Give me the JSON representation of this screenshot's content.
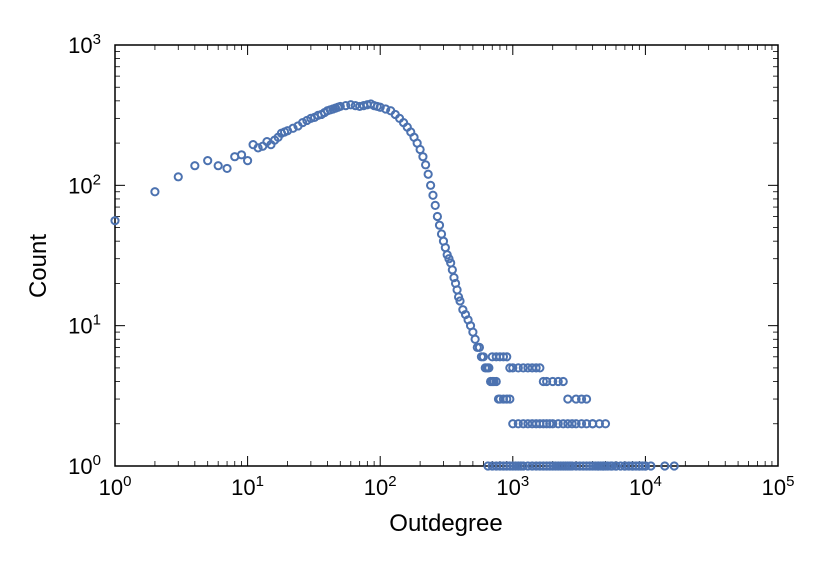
{
  "chart_data": {
    "type": "scatter",
    "title": "",
    "xlabel": "Outdegree",
    "ylabel": "Count",
    "x_scale": "log",
    "y_scale": "log",
    "xlim": [
      1,
      100000
    ],
    "ylim": [
      1,
      1000
    ],
    "grid": false,
    "legend": "none",
    "marker": "open-circle",
    "x_ticks": [
      {
        "base": "10",
        "exp": "0"
      },
      {
        "base": "10",
        "exp": "1"
      },
      {
        "base": "10",
        "exp": "2"
      },
      {
        "base": "10",
        "exp": "3"
      },
      {
        "base": "10",
        "exp": "4"
      },
      {
        "base": "10",
        "exp": "5"
      }
    ],
    "y_ticks": [
      {
        "base": "10",
        "exp": "0"
      },
      {
        "base": "10",
        "exp": "1"
      },
      {
        "base": "10",
        "exp": "2"
      },
      {
        "base": "10",
        "exp": "3"
      }
    ],
    "colors": {
      "marker": "#4c72b0",
      "axis": "#000000",
      "background": "#ffffff"
    },
    "series": [
      {
        "x": [
          1,
          2,
          3,
          4,
          5,
          6,
          7,
          8,
          9,
          10,
          11,
          12,
          13,
          14,
          15,
          16,
          17,
          18,
          19,
          20,
          22,
          24,
          26,
          28,
          30,
          32,
          34,
          36,
          38,
          40,
          42,
          44,
          46,
          48,
          50,
          55,
          60,
          65,
          70,
          75,
          80,
          85,
          90,
          95,
          100,
          110,
          120,
          130,
          140,
          150,
          160,
          170,
          180,
          190,
          200,
          210,
          220,
          230,
          240,
          250,
          260,
          270,
          280,
          290,
          300,
          310,
          320,
          330,
          340,
          350,
          360,
          370,
          380,
          390,
          400,
          420,
          440,
          460,
          480,
          500,
          520,
          540,
          560,
          580,
          600,
          620,
          640,
          660,
          680,
          700,
          720,
          750,
          780,
          800,
          850,
          900,
          950,
          1000,
          1100,
          1200,
          1300,
          1400,
          1500,
          1600,
          1700,
          1800,
          1900,
          2000,
          2200,
          2400,
          2600,
          2800,
          3000,
          3300,
          3600,
          4000,
          4400,
          4800,
          5200,
          5600,
          6000,
          7000,
          8000,
          9000,
          10000,
          11000,
          14000,
          16500
        ],
        "y": [
          56,
          90,
          115,
          138,
          150,
          138,
          132,
          160,
          165,
          150,
          195,
          185,
          190,
          205,
          195,
          210,
          220,
          235,
          240,
          245,
          255,
          265,
          280,
          290,
          300,
          305,
          315,
          320,
          330,
          340,
          345,
          350,
          355,
          360,
          365,
          370,
          375,
          370,
          365,
          370,
          375,
          380,
          370,
          365,
          360,
          350,
          340,
          320,
          300,
          280,
          260,
          240,
          220,
          200,
          180,
          160,
          140,
          120,
          100,
          85,
          72,
          60,
          52,
          45,
          40,
          36,
          32,
          30,
          28,
          25,
          22,
          20,
          18,
          16,
          15,
          13,
          12,
          11,
          10,
          9,
          8,
          7,
          7,
          6,
          6,
          5,
          5,
          5,
          4,
          4,
          4,
          4,
          3,
          3,
          3,
          3,
          3,
          2,
          2,
          2,
          2,
          2,
          2,
          2,
          2,
          2,
          2,
          2,
          2,
          2,
          2,
          2,
          2,
          2,
          2,
          2,
          1,
          1,
          1,
          1,
          1,
          1,
          1,
          1,
          1,
          1,
          1,
          1
        ]
      },
      {
        "x": [
          700,
          750,
          800,
          850,
          900,
          950,
          1000,
          1100,
          1200,
          1300,
          1400,
          1500,
          1600,
          1700,
          1800,
          2000,
          2200,
          2400,
          2600,
          3000,
          3300,
          3600,
          4000,
          4500,
          5000
        ],
        "y": [
          6,
          6,
          6,
          6,
          6,
          5,
          5,
          5,
          5,
          5,
          5,
          5,
          5,
          4,
          4,
          4,
          4,
          4,
          3,
          3,
          3,
          3,
          2,
          2,
          2
        ]
      },
      {
        "x": [
          650,
          700,
          750,
          800,
          850,
          900,
          950,
          1000,
          1050,
          1100,
          1150,
          1200,
          1300,
          1400,
          1500,
          1600,
          1700,
          1800,
          1900,
          2000,
          2100,
          2200,
          2300,
          2400,
          2500,
          2600,
          2700,
          2800,
          3000,
          3200,
          3400,
          3600,
          3800,
          4000,
          4200,
          4400,
          4600,
          4800,
          5000,
          5500,
          6000,
          6500,
          7000,
          7500,
          8000,
          8500,
          9000,
          9500,
          10000
        ],
        "y": [
          1,
          1,
          1,
          1,
          1,
          1,
          1,
          1,
          1,
          1,
          1,
          1,
          1,
          1,
          1,
          1,
          1,
          1,
          1,
          1,
          1,
          1,
          1,
          1,
          1,
          1,
          1,
          1,
          1,
          1,
          1,
          1,
          1,
          1,
          1,
          1,
          1,
          1,
          1,
          1,
          1,
          1,
          1,
          1,
          1,
          1,
          1,
          1,
          1
        ]
      }
    ]
  }
}
